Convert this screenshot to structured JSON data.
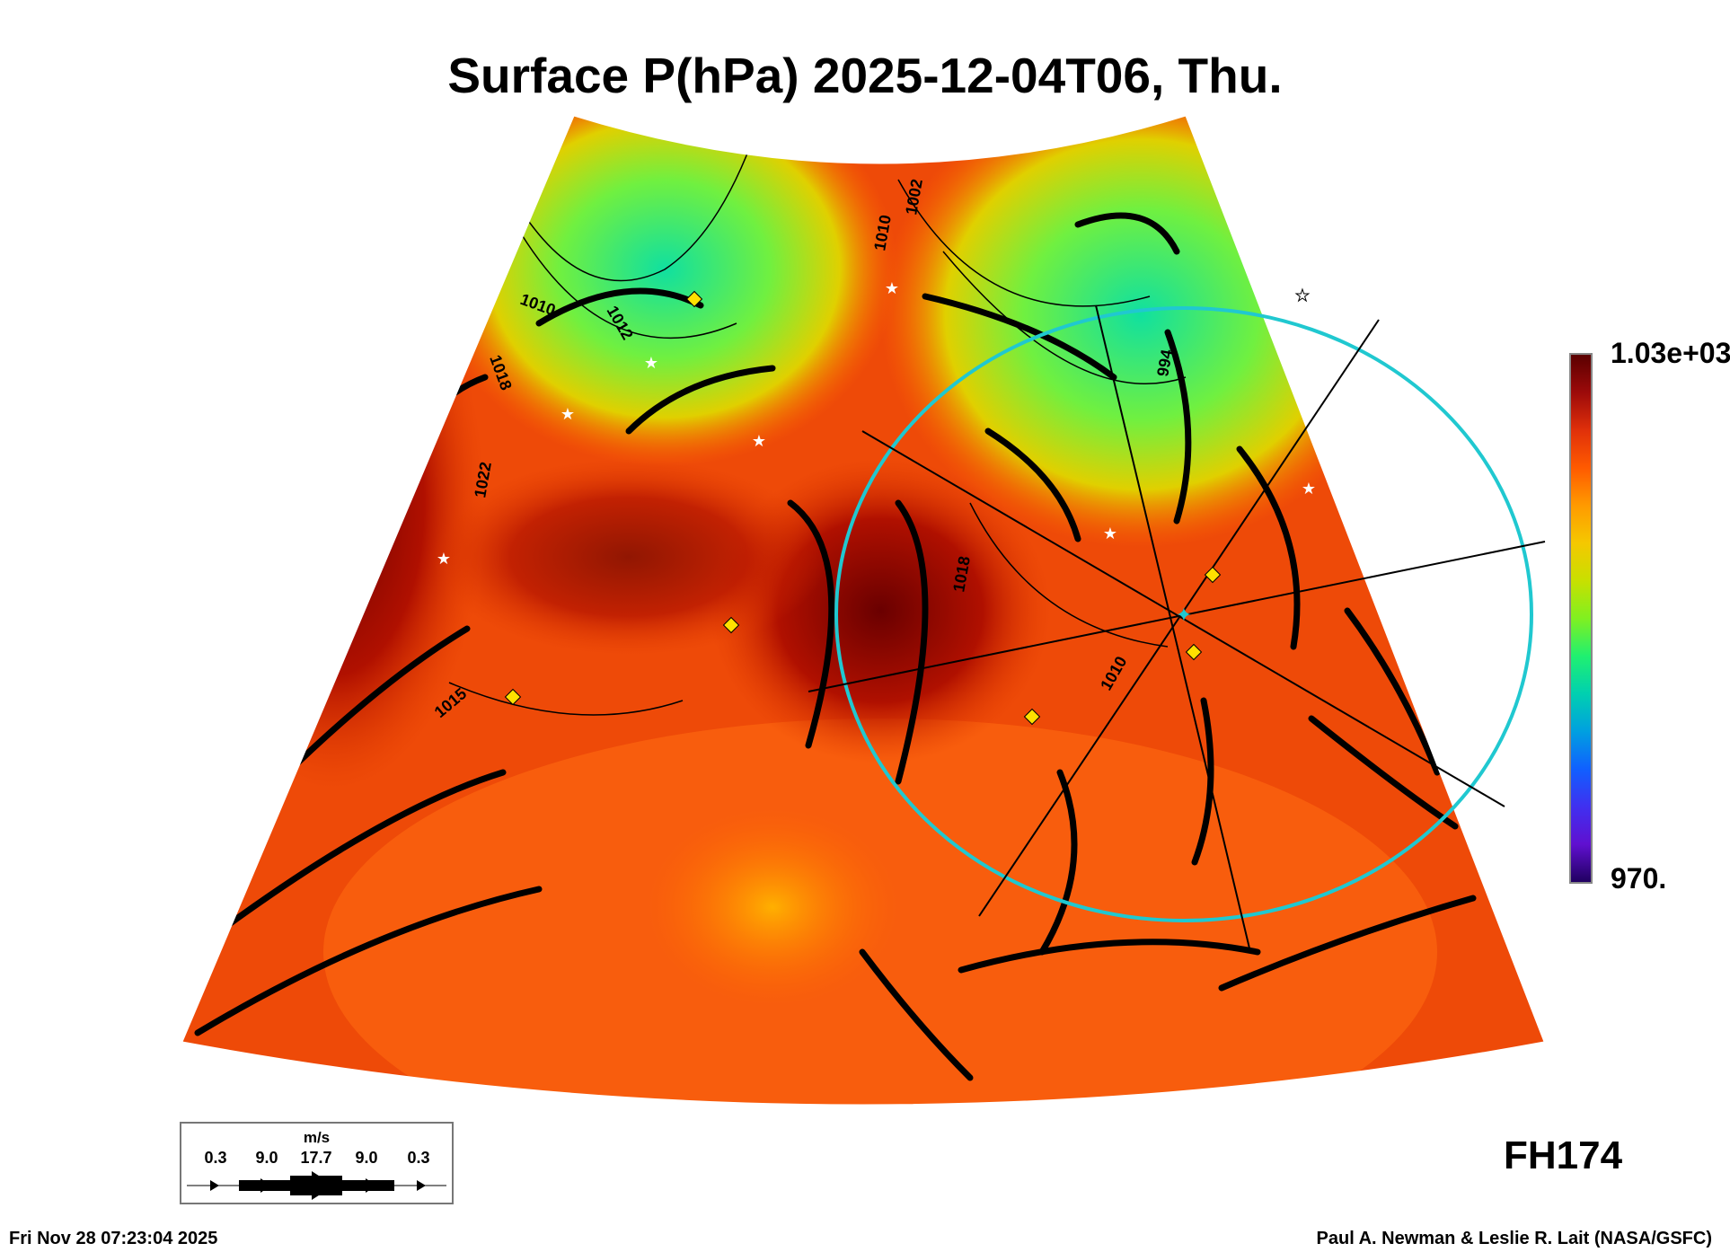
{
  "title": "Surface P(hPa) 2025-12-04T06, Thu.",
  "colorbar": {
    "max_label": "1.03e+03",
    "min_label": "970.",
    "colors": [
      "#5a0000",
      "#e0300a",
      "#ff9a00",
      "#c8e000",
      "#20f070",
      "#00a0e0",
      "#4030f0",
      "#200060"
    ]
  },
  "contour_labels": [
    "1010",
    "1012",
    "1018",
    "1022",
    "1015",
    "1018",
    "994",
    "1010",
    "1010",
    "1002"
  ],
  "wind_legend": {
    "unit": "m/s",
    "values": [
      "0.3",
      "9.0",
      "17.7",
      "9.0",
      "0.3"
    ]
  },
  "forecast_hour": "FH174",
  "footer": {
    "timestamp": "Fri Nov 28 07:23:04 2025",
    "credit": "Paul A. Newman & Leslie R. Lait (NASA/GSFC)"
  },
  "overlay_color": "#20c8d0"
}
